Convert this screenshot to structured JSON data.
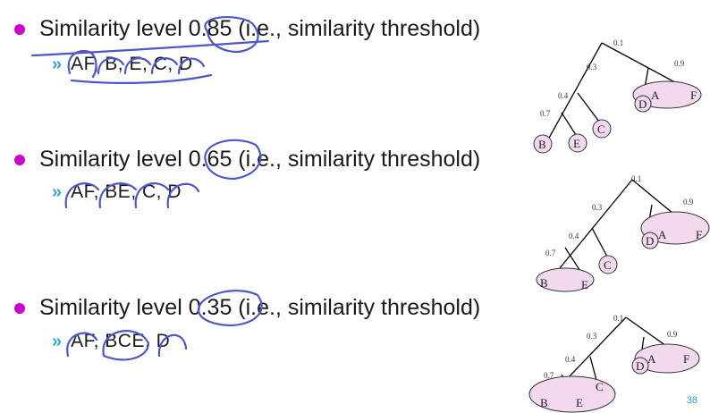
{
  "slide": {
    "page_number": "38",
    "bullet_color": "#cc00cc",
    "chevron": "»",
    "ink_color": "#4d57c8"
  },
  "bullets": [
    {
      "text": "Similarity level 0.85 (i.e., similarity threshold)",
      "clusters": "AF, B, E, C, D",
      "tree": {
        "node_labels": [
          "0.1",
          "0.3",
          "0.9",
          "0.4",
          "0.7"
        ],
        "leaves": [
          "B",
          "E",
          "C",
          "D",
          "A",
          "F"
        ]
      }
    },
    {
      "text": "Similarity level 0.65 (i.e., similarity threshold)",
      "clusters": "AF, BE, C, D",
      "tree": {
        "node_labels": [
          "0.1",
          "0.3",
          "0.9",
          "0.4",
          "0.7"
        ],
        "leaves": [
          "B",
          "E",
          "C",
          "D",
          "A",
          "F"
        ]
      }
    },
    {
      "text": "Similarity level 0.35 (i.e., similarity threshold)",
      "clusters": "AF, BCE, D",
      "tree": {
        "node_labels": [
          "0.1",
          "0.3",
          "0.9",
          "0.4",
          "0.7"
        ],
        "leaves": [
          "B",
          "E",
          "C",
          "D",
          "A",
          "F"
        ]
      }
    }
  ]
}
